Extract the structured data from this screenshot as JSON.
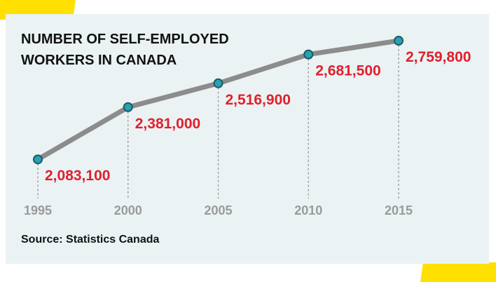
{
  "colors": {
    "panel_background": "#eaf2f4",
    "accent_yellow": "#ffe000",
    "line": "#8c8c8c",
    "marker_fill": "#2aa1b3",
    "marker_stroke": "#1d5a66",
    "value_label": "#e0202c",
    "tick_label": "#9a9a9a",
    "guide_line": "#9a9a9a"
  },
  "source": "Source: Statistics Canada",
  "chart_data": {
    "type": "line",
    "title_lines": [
      "NUMBER OF SELF-EMPLOYED",
      "WORKERS IN CANADA"
    ],
    "x": [
      1995,
      2000,
      2005,
      2010,
      2015
    ],
    "x_tick_labels": [
      "1995",
      "2000",
      "2005",
      "2010",
      "2015"
    ],
    "values": [
      2083100,
      2381000,
      2516900,
      2681500,
      2759800
    ],
    "value_labels": [
      "2,083,100",
      "2,381,000",
      "2,516,900",
      "2,681,500",
      "2,759,800"
    ],
    "xlim": [
      1995,
      2015
    ],
    "ylim": [
      2000000,
      2800000
    ],
    "grid": false,
    "markers": true,
    "drop_lines": true
  }
}
